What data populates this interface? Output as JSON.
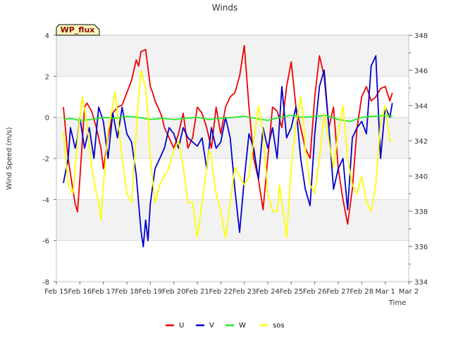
{
  "chart_data": {
    "type": "line",
    "title": "Winds",
    "badge": "WP_flux",
    "xlabel": "Time",
    "ylabel": "Wind Speed (m/s)",
    "ylim": [
      -8,
      4
    ],
    "y2lim": [
      334,
      348
    ],
    "yticks": [
      -8,
      -6,
      -4,
      -2,
      0,
      2,
      4
    ],
    "y2ticks": [
      334,
      336,
      338,
      340,
      342,
      344,
      346,
      348
    ],
    "xlim": [
      0,
      15
    ],
    "xtick_labels": [
      "Feb 15",
      "Feb 16",
      "Feb 17",
      "Feb 18",
      "Feb 19",
      "Feb 20",
      "Feb 21",
      "Feb 22",
      "Feb 23",
      "Feb 24",
      "Feb 25",
      "Feb 26",
      "Feb 27",
      "Feb 28",
      "Mar 1",
      "Mar 2"
    ],
    "legend": [
      "U",
      "V",
      "W",
      "sos"
    ],
    "series": [
      {
        "name": "U",
        "color": "#ee0000",
        "axis": "left",
        "x": [
          0.3,
          0.5,
          0.7,
          0.8,
          0.9,
          1.0,
          1.2,
          1.3,
          1.5,
          1.7,
          1.9,
          2.0,
          2.2,
          2.4,
          2.6,
          2.8,
          3.0,
          3.2,
          3.4,
          3.5,
          3.6,
          3.8,
          4.0,
          4.1,
          4.2,
          4.4,
          4.5,
          4.6,
          4.8,
          5.0,
          5.2,
          5.4,
          5.6,
          5.8,
          6.0,
          6.2,
          6.4,
          6.6,
          6.8,
          7.0,
          7.2,
          7.4,
          7.6,
          7.8,
          8.0,
          8.2,
          8.4,
          8.6,
          8.8,
          9.0,
          9.2,
          9.4,
          9.6,
          9.8,
          10.0,
          10.2,
          10.4,
          10.6,
          10.8,
          11.0,
          11.2,
          11.4,
          11.6,
          11.8,
          12.0,
          12.2,
          12.4,
          12.6,
          12.8,
          13.0,
          13.2,
          13.4,
          13.6,
          13.8,
          14.0,
          14.2,
          14.3
        ],
        "y": [
          0.5,
          -2.0,
          -3.5,
          -4.2,
          -4.6,
          -3.0,
          0.5,
          0.7,
          0.3,
          -0.5,
          -1.5,
          -2.5,
          -1.0,
          0.2,
          0.5,
          0.6,
          1.2,
          1.8,
          2.8,
          2.5,
          3.2,
          3.3,
          1.5,
          1.2,
          0.8,
          0.3,
          0.0,
          -0.5,
          -1.0,
          -1.5,
          -0.8,
          0.2,
          -1.5,
          -1.0,
          0.5,
          0.2,
          -0.5,
          -1.5,
          0.5,
          -0.8,
          0.5,
          1.0,
          1.2,
          2.0,
          3.5,
          0.5,
          -2.0,
          -3.0,
          -4.5,
          -2.0,
          0.5,
          0.3,
          -0.5,
          1.5,
          2.7,
          0.5,
          -0.5,
          -1.5,
          -2.0,
          1.0,
          3.0,
          2.0,
          -0.5,
          0.5,
          -2.5,
          -4.0,
          -5.2,
          -3.5,
          -0.5,
          1.0,
          1.5,
          0.8,
          1.0,
          1.4,
          1.5,
          0.8,
          1.2
        ]
      },
      {
        "name": "V",
        "color": "#0000cc",
        "axis": "left",
        "x": [
          0.3,
          0.5,
          0.6,
          0.8,
          0.9,
          1.0,
          1.2,
          1.4,
          1.6,
          1.8,
          2.0,
          2.2,
          2.4,
          2.6,
          2.8,
          3.0,
          3.2,
          3.4,
          3.6,
          3.7,
          3.8,
          3.9,
          4.0,
          4.2,
          4.4,
          4.6,
          4.8,
          5.0,
          5.2,
          5.4,
          5.6,
          5.8,
          6.0,
          6.2,
          6.4,
          6.6,
          6.8,
          7.0,
          7.2,
          7.4,
          7.6,
          7.8,
          8.0,
          8.2,
          8.4,
          8.6,
          8.8,
          9.0,
          9.2,
          9.4,
          9.6,
          9.8,
          10.0,
          10.2,
          10.4,
          10.6,
          10.8,
          11.0,
          11.2,
          11.4,
          11.6,
          11.8,
          12.0,
          12.2,
          12.4,
          12.6,
          12.8,
          13.0,
          13.2,
          13.4,
          13.6,
          13.8,
          14.0,
          14.2,
          14.3
        ],
        "y": [
          -3.2,
          -2.0,
          -0.5,
          -1.5,
          -1.0,
          0.0,
          -1.5,
          -0.5,
          -2.0,
          0.5,
          -0.2,
          -2.0,
          0.2,
          -1.0,
          0.5,
          -0.8,
          -1.2,
          -2.8,
          -5.5,
          -6.3,
          -5.0,
          -6.0,
          -4.2,
          -2.5,
          -2.0,
          -1.5,
          -0.5,
          -0.8,
          -1.5,
          -0.5,
          -1.0,
          -1.2,
          -1.4,
          -1.0,
          -2.5,
          -0.5,
          -1.5,
          -1.2,
          0.0,
          -1.0,
          -3.5,
          -5.6,
          -3.0,
          -0.8,
          -1.5,
          -3.0,
          -0.5,
          -1.5,
          -0.5,
          -2.0,
          1.5,
          -1.0,
          -0.5,
          0.5,
          -2.0,
          -3.5,
          -4.3,
          -0.8,
          1.5,
          2.3,
          -0.5,
          -3.5,
          -2.5,
          -2.0,
          -4.5,
          -1.0,
          -0.5,
          -0.2,
          -0.8,
          2.5,
          3.0,
          -2.0,
          0.5,
          0.0,
          0.7
        ]
      },
      {
        "name": "W",
        "color": "#22ee22",
        "axis": "left",
        "x": [
          0.3,
          0.6,
          1.0,
          1.5,
          2.0,
          2.5,
          3.0,
          3.5,
          4.0,
          4.5,
          5.0,
          5.5,
          6.0,
          6.5,
          7.0,
          7.5,
          8.0,
          8.5,
          9.0,
          9.5,
          10.0,
          10.5,
          11.0,
          11.5,
          12.0,
          12.5,
          13.0,
          13.5,
          14.0,
          14.3
        ],
        "y": [
          -0.1,
          -0.05,
          -0.15,
          -0.1,
          0.0,
          -0.05,
          0.05,
          0.0,
          -0.1,
          -0.05,
          -0.1,
          -0.05,
          0.0,
          -0.1,
          -0.05,
          0.0,
          0.05,
          -0.05,
          -0.15,
          0.0,
          0.1,
          0.0,
          0.05,
          0.1,
          -0.1,
          -0.2,
          0.0,
          0.05,
          0.1,
          0.05
        ]
      },
      {
        "name": "sos",
        "color": "#ffff00",
        "axis": "right",
        "x": [
          0.3,
          0.5,
          0.7,
          0.9,
          1.1,
          1.3,
          1.5,
          1.7,
          1.8,
          1.9,
          2.0,
          2.2,
          2.4,
          2.5,
          2.6,
          2.8,
          3.0,
          3.2,
          3.4,
          3.5,
          3.6,
          3.8,
          3.9,
          4.0,
          4.2,
          4.4,
          4.6,
          4.8,
          5.0,
          5.2,
          5.4,
          5.6,
          5.8,
          6.0,
          6.2,
          6.4,
          6.5,
          6.6,
          6.8,
          7.0,
          7.2,
          7.4,
          7.6,
          7.8,
          8.0,
          8.2,
          8.4,
          8.6,
          8.8,
          9.0,
          9.2,
          9.4,
          9.5,
          9.6,
          9.8,
          10.0,
          10.2,
          10.4,
          10.5,
          10.6,
          10.8,
          11.0,
          11.2,
          11.4,
          11.6,
          11.8,
          12.0,
          12.2,
          12.4,
          12.6,
          12.8,
          13.0,
          13.2,
          13.4,
          13.6,
          13.8,
          14.0,
          14.2,
          14.3
        ],
        "y": [
          342.5,
          339.5,
          339.0,
          342.0,
          344.5,
          343.0,
          340.5,
          339.0,
          338.5,
          337.5,
          339.5,
          342.5,
          344.0,
          344.8,
          343.5,
          341.0,
          339.0,
          338.5,
          342.5,
          344.5,
          346.0,
          345.0,
          343.5,
          341.0,
          338.5,
          339.5,
          340.0,
          340.5,
          341.5,
          342.0,
          340.5,
          338.5,
          338.5,
          336.5,
          338.5,
          340.5,
          341.5,
          341.0,
          339.0,
          338.0,
          336.5,
          338.5,
          340.5,
          340.0,
          339.5,
          340.0,
          342.0,
          344.0,
          342.5,
          339.0,
          338.0,
          338.0,
          339.5,
          338.5,
          336.5,
          340.5,
          343.0,
          344.5,
          343.5,
          341.5,
          339.5,
          339.0,
          341.0,
          343.5,
          342.0,
          340.5,
          342.5,
          344.0,
          341.0,
          339.5,
          339.0,
          340.0,
          338.5,
          338.0,
          339.5,
          343.0,
          344.0,
          342.0,
          342.0
        ]
      }
    ]
  }
}
